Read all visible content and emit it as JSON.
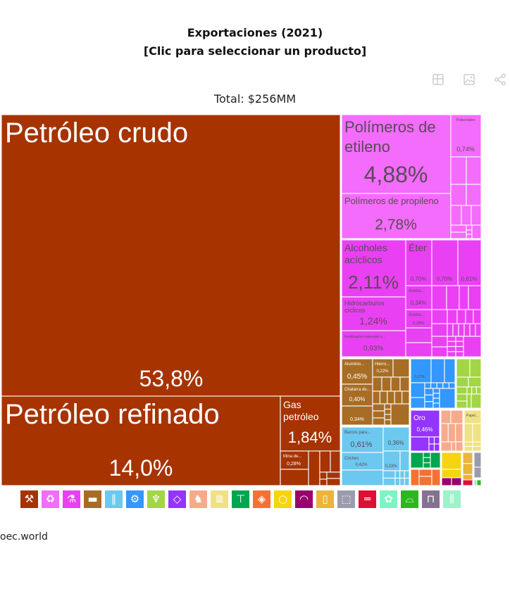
{
  "header": {
    "title_line1": "Exportaciones (2021)",
    "title_line2": "[Clic para seleccionar un producto]",
    "total": "Total: $256MM"
  },
  "toolbar": {
    "icons": [
      "table-icon",
      "image-icon",
      "share-icon"
    ]
  },
  "footer": {
    "source": "oec.world"
  },
  "chart_data": {
    "type": "treemap",
    "title": "Exportaciones (2021)",
    "subtitle": "[Clic para seleccionar un producto]",
    "total_label": "Total: $256MM",
    "colors": {
      "mineral": "#a63300",
      "chemical": "#f36cfb",
      "chemical2": "#ea40f3",
      "metals": "#a86d24",
      "transport": "#6cc8ee",
      "machinery": "#3397ff",
      "vegetable": "#a2d646",
      "stone": "#9334ff",
      "animal": "#f5ab8c",
      "paper": "#efe185",
      "textile": "#00a54f",
      "footwear_orange": "#f47132",
      "foodstuffs": "#f6d40f",
      "instruments": "#9a006d",
      "misc": "#ebb43a",
      "plastic_gray": "#9b9bad",
      "wood": "#e10e33",
      "hides": "#7cf5c3"
    },
    "labeled_items": [
      {
        "name": "Petróleo crudo",
        "share": "53,8%",
        "value_pct": 53.8,
        "sector": "mineral"
      },
      {
        "name": "Petróleo refinado",
        "share": "14,0%",
        "value_pct": 14.0,
        "sector": "mineral"
      },
      {
        "name": "Gas petróleo",
        "share": "1,84%",
        "value_pct": 1.84,
        "sector": "mineral"
      },
      {
        "name": "Mina de...",
        "share": "0,28%",
        "value_pct": 0.28,
        "sector": "mineral"
      },
      {
        "name": "Polímeros de etileno",
        "share": "4,88%",
        "value_pct": 4.88,
        "sector": "chemical"
      },
      {
        "name": "Polímeros de propileno",
        "share": "2,78%",
        "value_pct": 2.78,
        "sector": "chemical"
      },
      {
        "name": "Poliacetales",
        "share": "0,74%",
        "value_pct": 0.74,
        "sector": "chemical"
      },
      {
        "name": "Alcoholes acíclicos",
        "share": "2,11%",
        "value_pct": 2.11,
        "sector": "chemical2"
      },
      {
        "name": "Éter",
        "share": "0,70%",
        "value_pct": 0.7,
        "sector": "chemical2"
      },
      {
        "name": "",
        "share": "0,70%",
        "value_pct": 0.7,
        "sector": "chemical2"
      },
      {
        "name": "",
        "share": "0,61%",
        "value_pct": 0.61,
        "sector": "chemical2"
      },
      {
        "name": "Hidrocarburos cíclicos",
        "share": "1,24%",
        "value_pct": 1.24,
        "sector": "chemical2"
      },
      {
        "name": "Ácidos...",
        "share": "0,34%",
        "value_pct": 0.34,
        "sector": "chemical2"
      },
      {
        "name": "Ácidos...",
        "share": "0,26%",
        "value_pct": 0.26,
        "sector": "chemical2"
      },
      {
        "name": "Fertilizantes minerales o...",
        "share": "0,93%",
        "value_pct": 0.93,
        "sector": "chemical2"
      },
      {
        "name": "Aluminio...",
        "share": "0,45%",
        "value_pct": 0.45,
        "sector": "metals"
      },
      {
        "name": "Hierro...",
        "share": "0,22%",
        "value_pct": 0.22,
        "sector": "metals"
      },
      {
        "name": "Chatarra de...",
        "share": "0,40%",
        "value_pct": 0.4,
        "sector": "metals"
      },
      {
        "name": "",
        "share": "0,34%",
        "value_pct": 0.34,
        "sector": "metals"
      },
      {
        "name": "Barcos para...",
        "share": "0,61%",
        "value_pct": 0.61,
        "sector": "transport"
      },
      {
        "name": "",
        "share": "0,36%",
        "value_pct": 0.36,
        "sector": "transport"
      },
      {
        "name": "Coches",
        "share": "0,42%",
        "value_pct": 0.42,
        "sector": "transport"
      },
      {
        "name": "",
        "share": "0,23%",
        "value_pct": 0.23,
        "sector": "transport"
      },
      {
        "name": "",
        "share": "0,27%",
        "value_pct": 0.27,
        "sector": "machinery"
      },
      {
        "name": "Oro",
        "share": "0,46%",
        "value_pct": 0.46,
        "sector": "stone"
      },
      {
        "name": "Papel...",
        "share": "",
        "value_pct": null,
        "sector": "paper"
      }
    ],
    "legend": [
      {
        "icon": "pickaxe-icon",
        "sector": "mineral",
        "color": "#a63300"
      },
      {
        "icon": "recycle-icon",
        "sector": "chemical",
        "color": "#f36cfb"
      },
      {
        "icon": "flask-icon",
        "sector": "chemical2",
        "color": "#ea40f3"
      },
      {
        "icon": "anvil-icon",
        "sector": "metals",
        "color": "#a86d24"
      },
      {
        "icon": "road-icon",
        "sector": "transport",
        "color": "#6cc8ee"
      },
      {
        "icon": "gear-icon",
        "sector": "machinery",
        "color": "#3397ff"
      },
      {
        "icon": "wheat-icon",
        "sector": "vegetable",
        "color": "#a2d646"
      },
      {
        "icon": "diamond-icon",
        "sector": "stone",
        "color": "#9334ff"
      },
      {
        "icon": "animal-icon",
        "sector": "animal",
        "color": "#f5ab8c"
      },
      {
        "icon": "scroll-icon",
        "sector": "paper",
        "color": "#efe185"
      },
      {
        "icon": "shirt-icon",
        "sector": "textile",
        "color": "#00a54f"
      },
      {
        "icon": "meat-icon",
        "sector": "animal_products",
        "color": "#f47132"
      },
      {
        "icon": "fruit-icon",
        "sector": "foodstuffs",
        "color": "#f6d40f"
      },
      {
        "icon": "gauge-icon",
        "sector": "instruments",
        "color": "#9a006d"
      },
      {
        "icon": "bottle-icon",
        "sector": "misc",
        "color": "#ebb43a"
      },
      {
        "icon": "box-icon",
        "sector": "plastic_gray",
        "color": "#9b9bad"
      },
      {
        "icon": "log-icon",
        "sector": "wood",
        "color": "#e10e33"
      },
      {
        "icon": "hide-icon",
        "sector": "hides",
        "color": "#7cf5c3"
      },
      {
        "icon": "shoe-icon",
        "sector": "footwear",
        "color": "#2cb71d"
      },
      {
        "icon": "easel-icon",
        "sector": "art",
        "color": "#847290"
      },
      {
        "icon": "ammo-icon",
        "sector": "weapons",
        "color": "#9cf2c9"
      }
    ]
  }
}
